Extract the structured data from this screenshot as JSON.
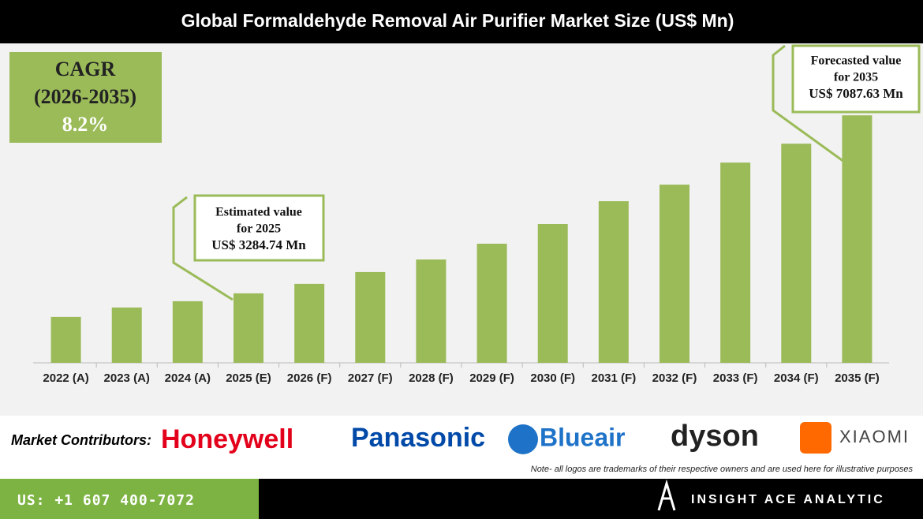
{
  "chart_data": {
    "type": "bar",
    "title": "Global Formaldehyde Removal Air Purifier Market Size (US$ Mn)",
    "categories": [
      "2022 (A)",
      "2023 (A)",
      "2024 (A)",
      "2025 (E)",
      "2026 (F)",
      "2027 (F)",
      "2028 (F)",
      "2029 (F)",
      "2030 (F)",
      "2031 (F)",
      "2032 (F)",
      "2033 (F)",
      "2034 (F)",
      "2035 (F)"
    ],
    "values": [
      2780,
      2982,
      3116,
      3284.74,
      3487,
      3739,
      4008,
      4345,
      4766,
      5253,
      5607,
      6078,
      6482,
      7087.63
    ],
    "color": "#9bbb59",
    "ylim": [
      1800,
      7900
    ],
    "cagr": [
      "CAGR",
      "(2026-2035)",
      "8.2%"
    ],
    "annotations": [
      {
        "lines": [
          "Estimated value",
          "for 2025",
          "US$ 3284.74 Mn"
        ]
      },
      {
        "lines": [
          "Forecasted value",
          "for 2035",
          "US$ 7087.63 Mn"
        ]
      }
    ]
  },
  "contributors": {
    "label": "Market Contributors:",
    "brands": [
      "Honeywell",
      "Panasonic",
      "Blueair",
      "dyson",
      "XIAOMI"
    ],
    "note": "Note- all logos are trademarks of their respective owners and are used here for illustrative purposes"
  },
  "footer": {
    "phone": "US: +1 607 400-7072",
    "company": "INSIGHT ACE ANALYTIC"
  }
}
